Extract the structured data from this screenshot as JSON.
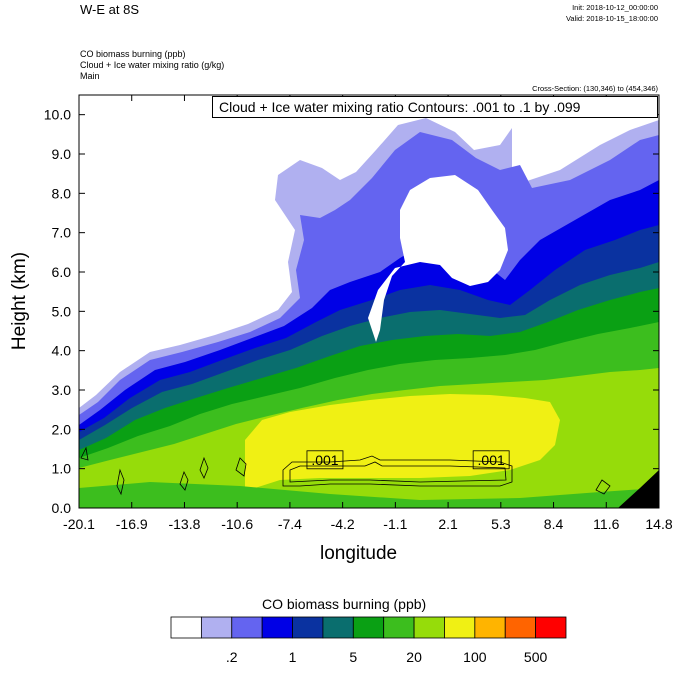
{
  "header": {
    "title": "W-E at 8S",
    "init": "Init: 2018-10-12_00:00:00",
    "valid": "Valid: 2018-10-15_18:00:00",
    "field1": "CO biomass burning   (ppb)",
    "field2": "Cloud + Ice water mixing ratio   (g/kg)",
    "field3": "Main",
    "cross_section": "Cross-Section: (130,346) to (454,346)",
    "contour_note": "Cloud + Ice water mixing ratio Contours: .001 to .1 by .099"
  },
  "colors": {
    "bins": [
      "#ffffff",
      "#b0b0f0",
      "#6464f0",
      "#0000e6",
      "#0a32a0",
      "#0a6e6e",
      "#0aa014",
      "#3cbe1e",
      "#96dc0a",
      "#f0f014",
      "#ffb400",
      "#ff6400",
      "#ff0000"
    ]
  },
  "chart_data": {
    "type": "heatmap",
    "title": "",
    "xlabel": "longitude",
    "ylabel": "Height (km)",
    "x_ticks": [
      "-20.1",
      "-16.9",
      "-13.8",
      "-10.6",
      "-7.4",
      "-4.2",
      "-1.1",
      "2.1",
      "5.3",
      "8.4",
      "11.6",
      "14.8"
    ],
    "y_ticks": [
      "0.0",
      "1.0",
      "2.0",
      "3.0",
      "4.0",
      "5.0",
      "6.0",
      "7.0",
      "8.0",
      "9.0",
      "10.0"
    ],
    "xlim": [
      -20.1,
      14.8
    ],
    "ylim": [
      0,
      10.5
    ],
    "contour_labels": [
      {
        "text": ".001",
        "x": -5.3,
        "y": 1.2
      },
      {
        "text": ".001",
        "x": 4.7,
        "y": 1.2
      }
    ],
    "colorbar": {
      "label": "CO biomass burning  (ppb)",
      "tick_labels": [
        ".2",
        "1",
        "5",
        "20",
        "100",
        "500"
      ]
    }
  }
}
